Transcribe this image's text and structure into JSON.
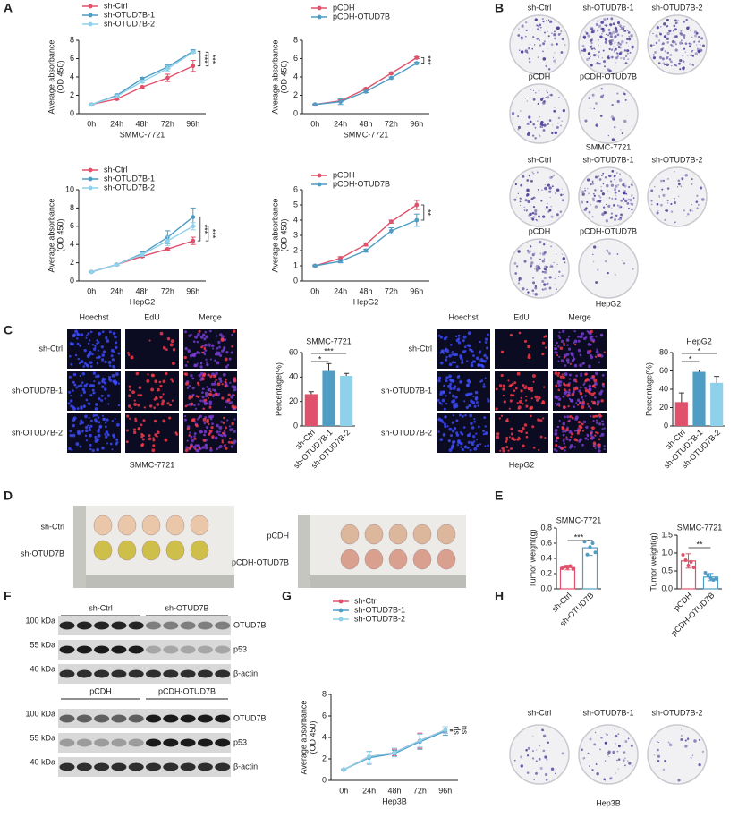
{
  "panel_labels": [
    "A",
    "B",
    "C",
    "D",
    "E",
    "F",
    "G",
    "H"
  ],
  "chart_data": [
    {
      "type": "line",
      "xlabel": "SMMC-7721",
      "ylabel": [
        "Average absorbance",
        "(OD 450)"
      ],
      "categories": [
        "0h",
        "24h",
        "48h",
        "72h",
        "96h"
      ],
      "series": [
        {
          "name": "sh-Ctrl",
          "color": "#e0516b",
          "values": [
            1,
            1.6,
            2.9,
            3.9,
            5.2
          ],
          "errors": [
            0.05,
            0.1,
            0.1,
            0.4,
            0.6
          ]
        },
        {
          "name": "sh-OTUD7B-1",
          "color": "#4f9cc4",
          "values": [
            1,
            2.0,
            3.8,
            5.1,
            6.8
          ],
          "errors": [
            0.05,
            0.1,
            0.15,
            0.2,
            0.15
          ]
        },
        {
          "name": "sh-OTUD7B-2",
          "color": "#8fd0ea",
          "values": [
            1,
            1.9,
            3.5,
            4.9,
            6.7
          ],
          "errors": [
            0.05,
            0.1,
            0.15,
            0.3,
            0.1
          ]
        }
      ],
      "ylim": [
        0,
        8
      ],
      "yticks": [
        0,
        2,
        4,
        6,
        8
      ],
      "legend": "top-left",
      "annotations": [
        "***",
        "***"
      ]
    },
    {
      "type": "line",
      "xlabel": "SMMC-7721",
      "ylabel": [
        "Average absorbance",
        "(OD 450)"
      ],
      "categories": [
        "0h",
        "24h",
        "48h",
        "72h",
        "96h"
      ],
      "series": [
        {
          "name": "pCDH",
          "color": "#e0516b",
          "values": [
            1,
            1.4,
            2.7,
            4.4,
            6.1
          ],
          "errors": [
            0.05,
            0.1,
            0.1,
            0.1,
            0.1
          ]
        },
        {
          "name": "pCDH-OTUD7B",
          "color": "#4f9cc4",
          "values": [
            1,
            1.3,
            2.4,
            3.9,
            5.5
          ],
          "errors": [
            0.05,
            0.3,
            0.1,
            0.1,
            0.1
          ]
        }
      ],
      "ylim": [
        0,
        8
      ],
      "yticks": [
        0,
        2,
        4,
        6,
        8
      ],
      "legend": "top-left",
      "annotations": [
        "***"
      ]
    },
    {
      "type": "line",
      "xlabel": "HepG2",
      "ylabel": [
        "Average absorbance",
        "(OD 450)"
      ],
      "categories": [
        "0h",
        "24h",
        "48h",
        "72h",
        "96h"
      ],
      "series": [
        {
          "name": "sh-Ctrl",
          "color": "#e0516b",
          "values": [
            1,
            1.8,
            2.7,
            3.5,
            4.4
          ],
          "errors": [
            0.05,
            0.1,
            0.1,
            0.1,
            0.4
          ]
        },
        {
          "name": "sh-OTUD7B-1",
          "color": "#4f9cc4",
          "values": [
            1,
            1.8,
            3.0,
            4.8,
            7.0
          ],
          "errors": [
            0.05,
            0.1,
            0.2,
            0.7,
            1.0
          ]
        },
        {
          "name": "sh-OTUD7B-2",
          "color": "#8fd0ea",
          "values": [
            1,
            1.8,
            2.9,
            4.4,
            6.0
          ],
          "errors": [
            0.05,
            0.1,
            0.2,
            0.5,
            0.4
          ]
        }
      ],
      "ylim": [
        0,
        10
      ],
      "yticks": [
        0,
        2,
        4,
        6,
        8,
        10
      ],
      "legend": "top-left",
      "annotations": [
        "***",
        "***"
      ]
    },
    {
      "type": "line",
      "xlabel": "HepG2",
      "ylabel": [
        "Average absorbance",
        "(OD 450)"
      ],
      "categories": [
        "0h",
        "24h",
        "48h",
        "72h",
        "96h"
      ],
      "series": [
        {
          "name": "pCDH",
          "color": "#e0516b",
          "values": [
            1,
            1.5,
            2.4,
            3.9,
            5.0
          ],
          "errors": [
            0.05,
            0.1,
            0.1,
            0.1,
            0.3
          ]
        },
        {
          "name": "pCDH-OTUD7B",
          "color": "#4f9cc4",
          "values": [
            1,
            1.3,
            2.0,
            3.3,
            4.0
          ],
          "errors": [
            0.05,
            0.1,
            0.1,
            0.2,
            0.4
          ]
        }
      ],
      "ylim": [
        0,
        6
      ],
      "yticks": [
        0,
        1,
        2,
        3,
        4,
        5,
        6
      ],
      "legend": "top-left",
      "annotations": [
        "**"
      ]
    },
    {
      "type": "bar",
      "title": "SMMC-7721",
      "ylabel": "Percentage(%)",
      "categories": [
        "sh-Ctrl",
        "sh-OTUD7B-1",
        "sh-OTUD7B-2"
      ],
      "values": [
        26,
        45,
        41
      ],
      "errors": [
        2,
        6,
        2
      ],
      "colors": [
        "#e0516b",
        "#4f9cc4",
        "#8fd0ea"
      ],
      "ylim": [
        0,
        60
      ],
      "yticks": [
        0,
        20,
        40,
        60
      ],
      "annotations": [
        "*",
        "***"
      ]
    },
    {
      "type": "bar",
      "title": "HepG2",
      "ylabel": "Percentage(%)",
      "categories": [
        "sh-Ctrl",
        "sh-OTUD7B-1",
        "sh-OTUD7B-2"
      ],
      "values": [
        26,
        59,
        47
      ],
      "errors": [
        10,
        2,
        7
      ],
      "colors": [
        "#e0516b",
        "#4f9cc4",
        "#8fd0ea"
      ],
      "ylim": [
        0,
        80
      ],
      "yticks": [
        0,
        20,
        40,
        60,
        80
      ],
      "annotations": [
        "*",
        "*"
      ]
    },
    {
      "type": "dotplot",
      "title": "SMMC-7721",
      "ylabel": "Tumor weight(g)",
      "categories": [
        "sh-Ctrl",
        "sh-OTUD7B"
      ],
      "values": [
        0.28,
        0.54
      ],
      "errors": [
        0.03,
        0.1
      ],
      "points": [
        [
          0.27,
          0.29,
          0.28,
          0.3,
          0.26
        ],
        [
          0.62,
          0.45,
          0.55,
          0.6,
          0.48
        ]
      ],
      "colors": [
        "#e0516b",
        "#4f9cc4"
      ],
      "ylim": [
        0,
        0.8
      ],
      "yticks": [
        {
          "value": 0,
          "label": "0.0"
        },
        0.2,
        0.4,
        0.6,
        0.8
      ],
      "annotations": [
        "***"
      ]
    },
    {
      "type": "dotplot",
      "title": "SMMC-7721",
      "ylabel": "Tumor weight(g)",
      "categories": [
        "pCDH",
        "pCDH-OTUD7B"
      ],
      "values": [
        0.78,
        0.33
      ],
      "errors": [
        0.2,
        0.1
      ],
      "points": [
        [
          0.95,
          0.8,
          0.65,
          0.75,
          0.6
        ],
        [
          0.45,
          0.38,
          0.3,
          0.25,
          0.28
        ]
      ],
      "colors": [
        "#e0516b",
        "#4f9cc4"
      ],
      "ylim": [
        0,
        1.5
      ],
      "yticks": [
        {
          "value": 0,
          "label": "0.0"
        },
        0.5,
        {
          "value": 1,
          "label": "1.0"
        },
        1.5
      ],
      "annotations": [
        "**"
      ]
    },
    {
      "type": "line",
      "xlabel": "Hep3B",
      "ylabel": [
        "Average absorbance",
        "(OD 450)"
      ],
      "categories": [
        "0h",
        "24h",
        "48h",
        "72h",
        "96h"
      ],
      "series": [
        {
          "name": "sh-Ctrl",
          "color": "#e0516b",
          "values": [
            1,
            2.2,
            2.6,
            3.7,
            4.7
          ],
          "errors": [
            0.05,
            0.5,
            0.3,
            0.7,
            0.3
          ]
        },
        {
          "name": "sh-OTUD7B-1",
          "color": "#4f9cc4",
          "values": [
            1,
            2.1,
            2.5,
            3.6,
            4.6
          ],
          "errors": [
            0.05,
            0.6,
            0.3,
            0.7,
            0.4
          ]
        },
        {
          "name": "sh-OTUD7B-2",
          "color": "#8fd0ea",
          "values": [
            1,
            2.2,
            2.6,
            3.7,
            4.7
          ],
          "errors": [
            0.05,
            0.5,
            0.4,
            0.6,
            0.3
          ]
        }
      ],
      "ylim": [
        0,
        8
      ],
      "yticks": [
        0,
        2,
        4,
        6,
        8
      ],
      "legend": "top-left",
      "annotations": [
        "ns",
        "ns"
      ]
    }
  ],
  "colony_b": [
    {
      "labels": [
        "sh-Ctrl",
        "sh-OTUD7B-1",
        "sh-OTUD7B-2",
        "pCDH",
        "pCDH-OTUD7B"
      ],
      "caption": "SMMC-7721"
    },
    {
      "labels": [
        "sh-Ctrl",
        "sh-OTUD7B-1",
        "sh-OTUD7B-2",
        "pCDH",
        "pCDH-OTUD7B"
      ],
      "caption": "HepG2"
    }
  ],
  "edu_c": {
    "columns": [
      "Hoechst",
      "EdU",
      "Merge"
    ],
    "panels": [
      {
        "rows": [
          "sh-Ctrl",
          "sh-OTUD7B-1",
          "sh-OTUD7B-2"
        ],
        "caption": "SMMC-7721"
      },
      {
        "rows": [
          "sh-Ctrl",
          "sh-OTUD7B-1",
          "sh-OTUD7B-2"
        ],
        "caption": "HepG2"
      }
    ]
  },
  "tumor_d": [
    {
      "rows": [
        "sh-Ctrl",
        "sh-OTUD7B"
      ]
    },
    {
      "rows": [
        "pCDH",
        "pCDH-OTUD7B"
      ]
    }
  ],
  "blot_f": [
    {
      "groups": [
        "sh-Ctrl",
        "sh-OTUD7B"
      ],
      "bands": [
        {
          "marker": "100 kDa",
          "protein": "OTUD7B"
        },
        {
          "marker": "55 kDa",
          "protein": "p53"
        },
        {
          "marker": "40 kDa",
          "protein": "β-actin"
        }
      ]
    },
    {
      "groups": [
        "pCDH",
        "pCDH-OTUD7B"
      ],
      "bands": [
        {
          "marker": "100 kDa",
          "protein": "OTUD7B"
        },
        {
          "marker": "55 kDa",
          "protein": "p53"
        },
        {
          "marker": "40 kDa",
          "protein": "β-actin"
        }
      ]
    }
  ],
  "colony_h": {
    "labels": [
      "sh-Ctrl",
      "sh-OTUD7B-1",
      "sh-OTUD7B-2"
    ],
    "caption": "Hep3B"
  }
}
